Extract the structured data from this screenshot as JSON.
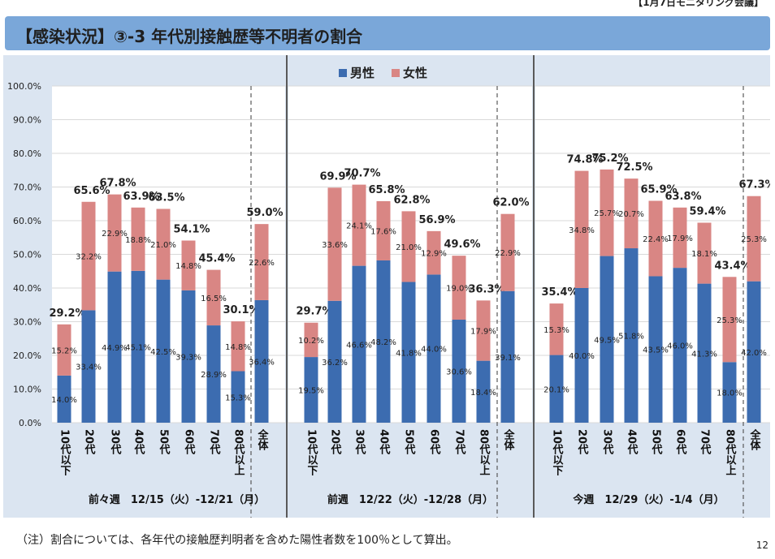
{
  "header": {
    "top_note": "【1月7日モニタリング会議】",
    "title": "【感染状況】③-3 年代別接触歴等不明者の割合",
    "footnote": "（注）割合については、各年代の接触歴判明者を含めた陽性者数を100％として算出。",
    "page_number": "12"
  },
  "chart_data": {
    "type": "bar",
    "stacked": true,
    "title": "",
    "ylabel": "",
    "ylim": [
      0,
      100
    ],
    "yticks": [
      "0.0%",
      "10.0%",
      "20.0%",
      "30.0%",
      "40.0%",
      "50.0%",
      "60.0%",
      "70.0%",
      "80.0%",
      "90.0%",
      "100.0%"
    ],
    "legend": [
      {
        "name": "男性",
        "color": "#3c6cb0"
      },
      {
        "name": "女性",
        "color": "#d98684"
      }
    ],
    "groups": [
      {
        "label": "前々週　12/15（火）-12/21（月）",
        "categories": [
          "10代以下",
          "20代",
          "30代",
          "40代",
          "50代",
          "60代",
          "70代",
          "80代以上",
          "全体"
        ],
        "male": [
          14.0,
          33.4,
          44.9,
          45.1,
          42.5,
          39.3,
          28.9,
          15.3,
          36.4
        ],
        "female": [
          15.2,
          32.2,
          22.9,
          18.8,
          21.0,
          14.8,
          16.5,
          14.8,
          22.6
        ],
        "male_labels": [
          "14.0%",
          "33.4%",
          "44.9%",
          "45.1%",
          "42.5%",
          "39.3%",
          "28.9%",
          "15.3%",
          "36.4%"
        ],
        "female_labels": [
          "15.2%",
          "32.2%",
          "22.9%",
          "18.8%",
          "21.0%",
          "14.8%",
          "16.5%",
          "14.8%",
          "22.6%"
        ],
        "total_labels": [
          "29.2%",
          "65.6%",
          "67.8%",
          "63.9%",
          "63.5%",
          "54.1%",
          "45.4%",
          "30.1%",
          "59.0%"
        ]
      },
      {
        "label": "前週　12/22（火）-12/28（月）",
        "categories": [
          "10代以下",
          "20代",
          "30代",
          "40代",
          "50代",
          "60代",
          "70代",
          "80代以上",
          "全体"
        ],
        "male": [
          19.5,
          36.2,
          46.6,
          48.2,
          41.8,
          44.0,
          30.6,
          18.4,
          39.1
        ],
        "female": [
          10.2,
          33.6,
          24.1,
          17.6,
          21.0,
          12.9,
          19.0,
          17.9,
          22.9
        ],
        "male_labels": [
          "19.5%",
          "36.2%",
          "46.6%",
          "48.2%",
          "41.8%",
          "44.0%",
          "30.6%",
          "18.4%",
          "39.1%"
        ],
        "female_labels": [
          "10.2%",
          "33.6%",
          "24.1%",
          "17.6%",
          "21.0%",
          "12.9%",
          "19.0%",
          "17.9%",
          "22.9%"
        ],
        "total_labels": [
          "29.7%",
          "69.9%",
          "70.7%",
          "65.8%",
          "62.8%",
          "56.9%",
          "49.6%",
          "36.3%",
          "62.0%"
        ]
      },
      {
        "label": "今週　12/29（火）-1/4（月）",
        "categories": [
          "10代以下",
          "20代",
          "30代",
          "40代",
          "50代",
          "60代",
          "70代",
          "80代以上",
          "全体"
        ],
        "male": [
          20.1,
          40.0,
          49.5,
          51.8,
          43.5,
          46.0,
          41.3,
          18.0,
          42.0
        ],
        "female": [
          15.3,
          34.8,
          25.7,
          20.7,
          22.4,
          17.9,
          18.1,
          25.3,
          25.3
        ],
        "male_labels": [
          "20.1%",
          "40.0%",
          "49.5%",
          "51.8%",
          "43.5%",
          "46.0%",
          "41.3%",
          "18.0%",
          "42.0%"
        ],
        "female_labels": [
          "15.3%",
          "34.8%",
          "25.7%",
          "20.7%",
          "22.4%",
          "17.9%",
          "18.1%",
          "25.3%",
          "25.3%"
        ],
        "total_labels": [
          "35.4%",
          "74.8%",
          "75.2%",
          "72.5%",
          "65.9%",
          "63.8%",
          "59.4%",
          "43.4%",
          "67.3%"
        ]
      }
    ]
  }
}
